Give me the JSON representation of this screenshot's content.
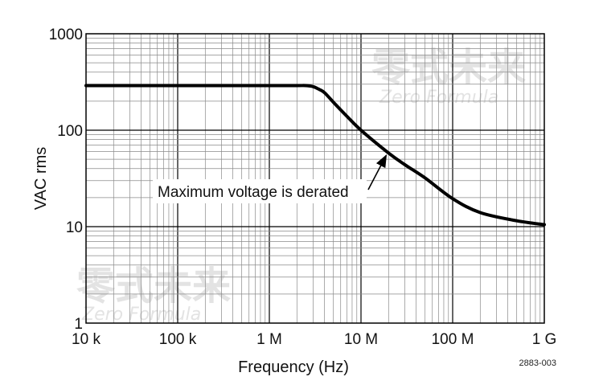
{
  "chart_data": {
    "type": "line",
    "xlabel": "Frequency (Hz)",
    "ylabel": "VAC rms",
    "x_scale": "log",
    "y_scale": "log",
    "xlim": [
      10000,
      1000000000
    ],
    "ylim": [
      1,
      1000
    ],
    "x_ticks": [
      {
        "value": 10000,
        "label": "10 k"
      },
      {
        "value": 100000,
        "label": "100 k"
      },
      {
        "value": 1000000,
        "label": "1 M"
      },
      {
        "value": 10000000,
        "label": "10 M"
      },
      {
        "value": 100000000,
        "label": "100 M"
      },
      {
        "value": 1000000000,
        "label": "1 G"
      }
    ],
    "y_ticks": [
      {
        "value": 1,
        "label": "1"
      },
      {
        "value": 10,
        "label": "10"
      },
      {
        "value": 100,
        "label": "100"
      },
      {
        "value": 1000,
        "label": "1000"
      }
    ],
    "grid": true,
    "series": [
      {
        "x": [
          10000,
          100000,
          1000000,
          2000000,
          2500000,
          3000000,
          3500000,
          4000000,
          5000000,
          7000000,
          10000000,
          20000000,
          30000000,
          50000000,
          100000000,
          200000000,
          500000000,
          1000000000
        ],
        "y": [
          290,
          290,
          290,
          290,
          290,
          283,
          265,
          245,
          195,
          140,
          100,
          58,
          44,
          32,
          19.5,
          14,
          11.5,
          10.5
        ]
      }
    ],
    "annotation": {
      "text": "Maximum voltage is derated",
      "arrow_to": {
        "x": 20000000,
        "y": 58
      }
    },
    "figure_id": "2883-003"
  },
  "watermark": {
    "cn": "零式未来",
    "en": "Zero Formula"
  }
}
